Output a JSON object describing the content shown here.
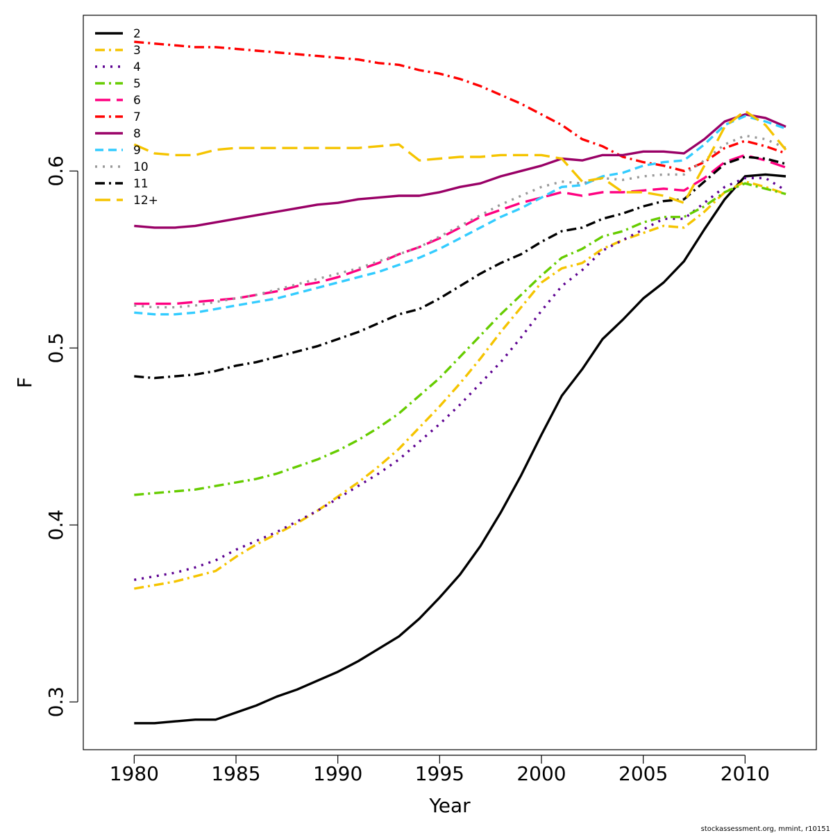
{
  "chart_data": {
    "type": "line",
    "xlabel": "Year",
    "ylabel": "F",
    "xlim": [
      1977.5,
      2013.5
    ],
    "ylim": [
      0.273,
      0.688
    ],
    "x_ticks": [
      1980,
      1985,
      1990,
      1995,
      2000,
      2005,
      2010
    ],
    "y_ticks": [
      0.3,
      0.4,
      0.5,
      0.6
    ],
    "x_tick_labels": [
      "1980",
      "1985",
      "1990",
      "1995",
      "2000",
      "2005",
      "2010"
    ],
    "y_tick_labels": [
      "0.3",
      "0.4",
      "0.5",
      "0.6"
    ],
    "legend_position": "top-left",
    "grid": false,
    "x": [
      1980,
      1981,
      1982,
      1983,
      1984,
      1985,
      1986,
      1987,
      1988,
      1989,
      1990,
      1991,
      1992,
      1993,
      1994,
      1995,
      1996,
      1997,
      1998,
      1999,
      2000,
      2001,
      2002,
      2003,
      2004,
      2005,
      2006,
      2007,
      2008,
      2009,
      2010,
      2011,
      2012
    ],
    "series": [
      {
        "name": "2",
        "color": "#000000",
        "dash": "solid",
        "values": [
          0.288,
          0.288,
          0.289,
          0.29,
          0.29,
          0.294,
          0.298,
          0.303,
          0.307,
          0.312,
          0.317,
          0.323,
          0.33,
          0.337,
          0.347,
          0.359,
          0.372,
          0.388,
          0.407,
          0.428,
          0.451,
          0.473,
          0.488,
          0.505,
          0.516,
          0.528,
          0.537,
          0.549,
          0.567,
          0.584,
          0.597,
          0.598,
          0.597
        ]
      },
      {
        "name": "3",
        "color": "#f5c400",
        "dash": "dashdot",
        "values": [
          0.364,
          0.366,
          0.368,
          0.371,
          0.374,
          0.382,
          0.389,
          0.395,
          0.401,
          0.408,
          0.416,
          0.424,
          0.433,
          0.443,
          0.455,
          0.467,
          0.48,
          0.494,
          0.509,
          0.523,
          0.537,
          0.545,
          0.548,
          0.556,
          0.561,
          0.565,
          0.569,
          0.568,
          0.577,
          0.588,
          0.594,
          0.591,
          0.587
        ]
      },
      {
        "name": "4",
        "color": "#5c0090",
        "dash": "dotted",
        "values": [
          0.369,
          0.371,
          0.373,
          0.376,
          0.38,
          0.386,
          0.391,
          0.396,
          0.402,
          0.408,
          0.415,
          0.422,
          0.429,
          0.437,
          0.447,
          0.457,
          0.468,
          0.48,
          0.492,
          0.506,
          0.521,
          0.535,
          0.544,
          0.555,
          0.561,
          0.567,
          0.573,
          0.573,
          0.582,
          0.591,
          0.596,
          0.596,
          0.589
        ]
      },
      {
        "name": "5",
        "color": "#66cc00",
        "dash": "dashdot",
        "values": [
          0.417,
          0.418,
          0.419,
          0.42,
          0.422,
          0.424,
          0.426,
          0.429,
          0.433,
          0.437,
          0.442,
          0.448,
          0.455,
          0.463,
          0.473,
          0.483,
          0.495,
          0.507,
          0.519,
          0.53,
          0.541,
          0.551,
          0.556,
          0.563,
          0.566,
          0.571,
          0.574,
          0.574,
          0.58,
          0.588,
          0.593,
          0.59,
          0.587
        ]
      },
      {
        "name": "6",
        "color": "#ff0080",
        "dash": "longdash",
        "values": [
          0.525,
          0.525,
          0.525,
          0.526,
          0.527,
          0.528,
          0.53,
          0.532,
          0.535,
          0.537,
          0.54,
          0.544,
          0.548,
          0.553,
          0.557,
          0.562,
          0.568,
          0.574,
          0.578,
          0.582,
          0.585,
          0.588,
          0.586,
          0.588,
          0.588,
          0.589,
          0.59,
          0.589,
          0.596,
          0.605,
          0.609,
          0.606,
          0.602
        ]
      },
      {
        "name": "7",
        "color": "#ff0000",
        "dash": "dashdot",
        "values": [
          0.673,
          0.672,
          0.671,
          0.67,
          0.67,
          0.669,
          0.668,
          0.667,
          0.666,
          0.665,
          0.664,
          0.663,
          0.661,
          0.66,
          0.657,
          0.655,
          0.652,
          0.648,
          0.643,
          0.638,
          0.632,
          0.626,
          0.618,
          0.614,
          0.608,
          0.605,
          0.603,
          0.6,
          0.605,
          0.613,
          0.617,
          0.614,
          0.61
        ]
      },
      {
        "name": "8",
        "color": "#990066",
        "dash": "solid",
        "values": [
          0.569,
          0.568,
          0.568,
          0.569,
          0.571,
          0.573,
          0.575,
          0.577,
          0.579,
          0.581,
          0.582,
          0.584,
          0.585,
          0.586,
          0.586,
          0.588,
          0.591,
          0.593,
          0.597,
          0.6,
          0.603,
          0.607,
          0.606,
          0.609,
          0.609,
          0.611,
          0.611,
          0.61,
          0.618,
          0.628,
          0.632,
          0.63,
          0.625
        ]
      },
      {
        "name": "9",
        "color": "#33ccff",
        "dash": "dashed",
        "values": [
          0.52,
          0.519,
          0.519,
          0.52,
          0.522,
          0.524,
          0.526,
          0.528,
          0.531,
          0.534,
          0.537,
          0.54,
          0.543,
          0.547,
          0.551,
          0.556,
          0.562,
          0.568,
          0.574,
          0.579,
          0.585,
          0.591,
          0.592,
          0.597,
          0.599,
          0.603,
          0.605,
          0.606,
          0.615,
          0.626,
          0.631,
          0.628,
          0.624
        ]
      },
      {
        "name": "10",
        "color": "#999999",
        "dash": "dotted",
        "values": [
          0.524,
          0.523,
          0.523,
          0.524,
          0.526,
          0.528,
          0.53,
          0.533,
          0.536,
          0.539,
          0.542,
          0.545,
          0.549,
          0.553,
          0.557,
          0.563,
          0.569,
          0.575,
          0.581,
          0.586,
          0.591,
          0.594,
          0.593,
          0.596,
          0.595,
          0.597,
          0.598,
          0.598,
          0.606,
          0.615,
          0.62,
          0.618,
          0.613
        ]
      },
      {
        "name": "11",
        "color": "#000000",
        "dash": "dashdot",
        "values": [
          0.484,
          0.483,
          0.484,
          0.485,
          0.487,
          0.49,
          0.492,
          0.495,
          0.498,
          0.501,
          0.505,
          0.509,
          0.514,
          0.519,
          0.522,
          0.528,
          0.535,
          0.542,
          0.548,
          0.553,
          0.56,
          0.566,
          0.568,
          0.573,
          0.576,
          0.58,
          0.583,
          0.584,
          0.594,
          0.604,
          0.608,
          0.607,
          0.604
        ]
      },
      {
        "name": "12+",
        "color": "#f5c400",
        "dash": "longdash",
        "values": [
          0.615,
          0.61,
          0.609,
          0.609,
          0.612,
          0.613,
          0.613,
          0.613,
          0.613,
          0.613,
          0.613,
          0.613,
          0.614,
          0.615,
          0.606,
          0.607,
          0.608,
          0.608,
          0.609,
          0.609,
          0.609,
          0.607,
          0.594,
          0.596,
          0.588,
          0.588,
          0.586,
          0.582,
          0.603,
          0.625,
          0.634,
          0.626,
          0.612
        ]
      }
    ]
  },
  "footer": {
    "credit": "stockassessment.org, mmint, r10151"
  }
}
